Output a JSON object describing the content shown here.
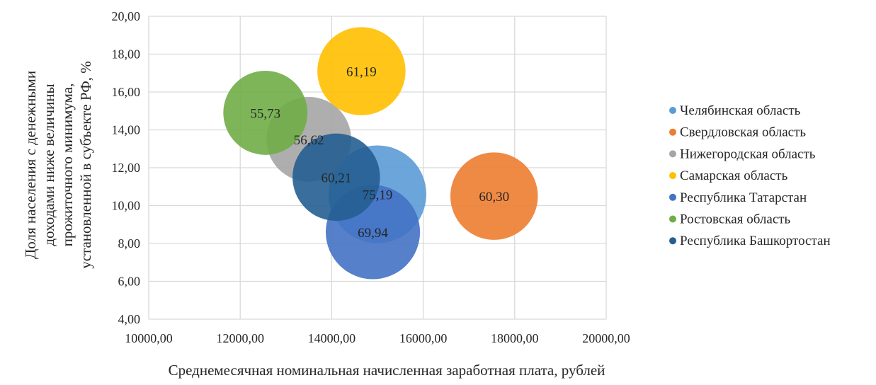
{
  "chart_data": {
    "type": "bubble",
    "xlabel": "Среднемесячная номинальная начисленная заработная плата, рублей",
    "ylabel_lines": [
      "Доля населения с денежными",
      "доходами ниже величины",
      "прожиточного минимума,",
      "установленной в субъекте РФ, %"
    ],
    "xlim": [
      10000,
      20000
    ],
    "ylim": [
      4,
      20
    ],
    "x_ticks": [
      10000,
      12000,
      14000,
      16000,
      18000,
      20000
    ],
    "y_ticks": [
      4,
      6,
      8,
      10,
      12,
      14,
      16,
      18,
      20
    ],
    "x_tick_labels": [
      "10000,00",
      "12000,00",
      "14000,00",
      "16000,00",
      "18000,00",
      "20000,00"
    ],
    "y_tick_labels": [
      "4,00",
      "6,00",
      "8,00",
      "10,00",
      "12,00",
      "14,00",
      "16,00",
      "18,00",
      "20,00"
    ],
    "grid": true,
    "legend_position": "right",
    "series": [
      {
        "name": "Челябинская область",
        "x": 15000,
        "y": 10.6,
        "size": 75.19,
        "label": "75,19",
        "color": "#5B9BD5"
      },
      {
        "name": "Свердловская область",
        "x": 17550,
        "y": 10.5,
        "size": 60.3,
        "label": "60,30",
        "color": "#ED7D31"
      },
      {
        "name": "Нижегородская область",
        "x": 13500,
        "y": 13.5,
        "size": 56.62,
        "label": "56,62",
        "color": "#A5A5A5"
      },
      {
        "name": "Самарская область",
        "x": 14650,
        "y": 17.1,
        "size": 61.19,
        "label": "61,19",
        "color": "#FFC000"
      },
      {
        "name": "Республика Татарстан",
        "x": 14900,
        "y": 8.6,
        "size": 69.94,
        "label": "69,94",
        "color": "#4472C4"
      },
      {
        "name": "Ростовская область",
        "x": 12550,
        "y": 14.9,
        "size": 55.73,
        "label": "55,73",
        "color": "#70AD47"
      },
      {
        "name": "Республика Башкортостан",
        "x": 14100,
        "y": 11.5,
        "size": 60.21,
        "label": "60,21",
        "color": "#255E91"
      }
    ]
  }
}
